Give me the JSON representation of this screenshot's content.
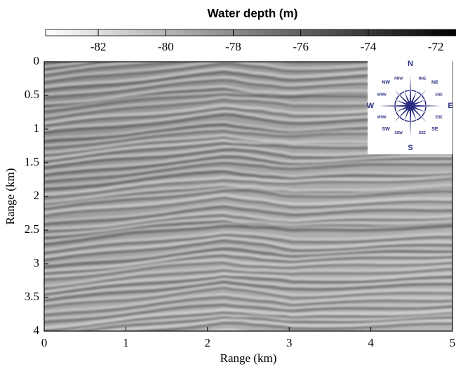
{
  "chart_data": {
    "type": "image",
    "colorbar": {
      "title": "Water depth (m)",
      "lim": [
        -83.56,
        -71.4
      ],
      "ticks": [
        -82,
        -80,
        -78,
        -76,
        -74,
        -72
      ]
    },
    "x_label": "Range (km)",
    "y_label": "Range (km)",
    "xlim": [
      0,
      5
    ],
    "xticks": [
      0,
      1,
      2,
      3,
      4,
      5
    ],
    "ylim": [
      0,
      4
    ],
    "yticks": [
      0,
      0.5,
      1,
      1.5,
      2,
      2.5,
      3,
      3.5,
      4
    ]
  },
  "compass": {
    "labels": [
      "N",
      "NNE",
      "NE",
      "ENE",
      "E",
      "ESE",
      "SE",
      "SSE",
      "S",
      "SSW",
      "SW",
      "WSW",
      "W",
      "WNW",
      "NW",
      "NNW"
    ],
    "color": "#2b2e80"
  }
}
